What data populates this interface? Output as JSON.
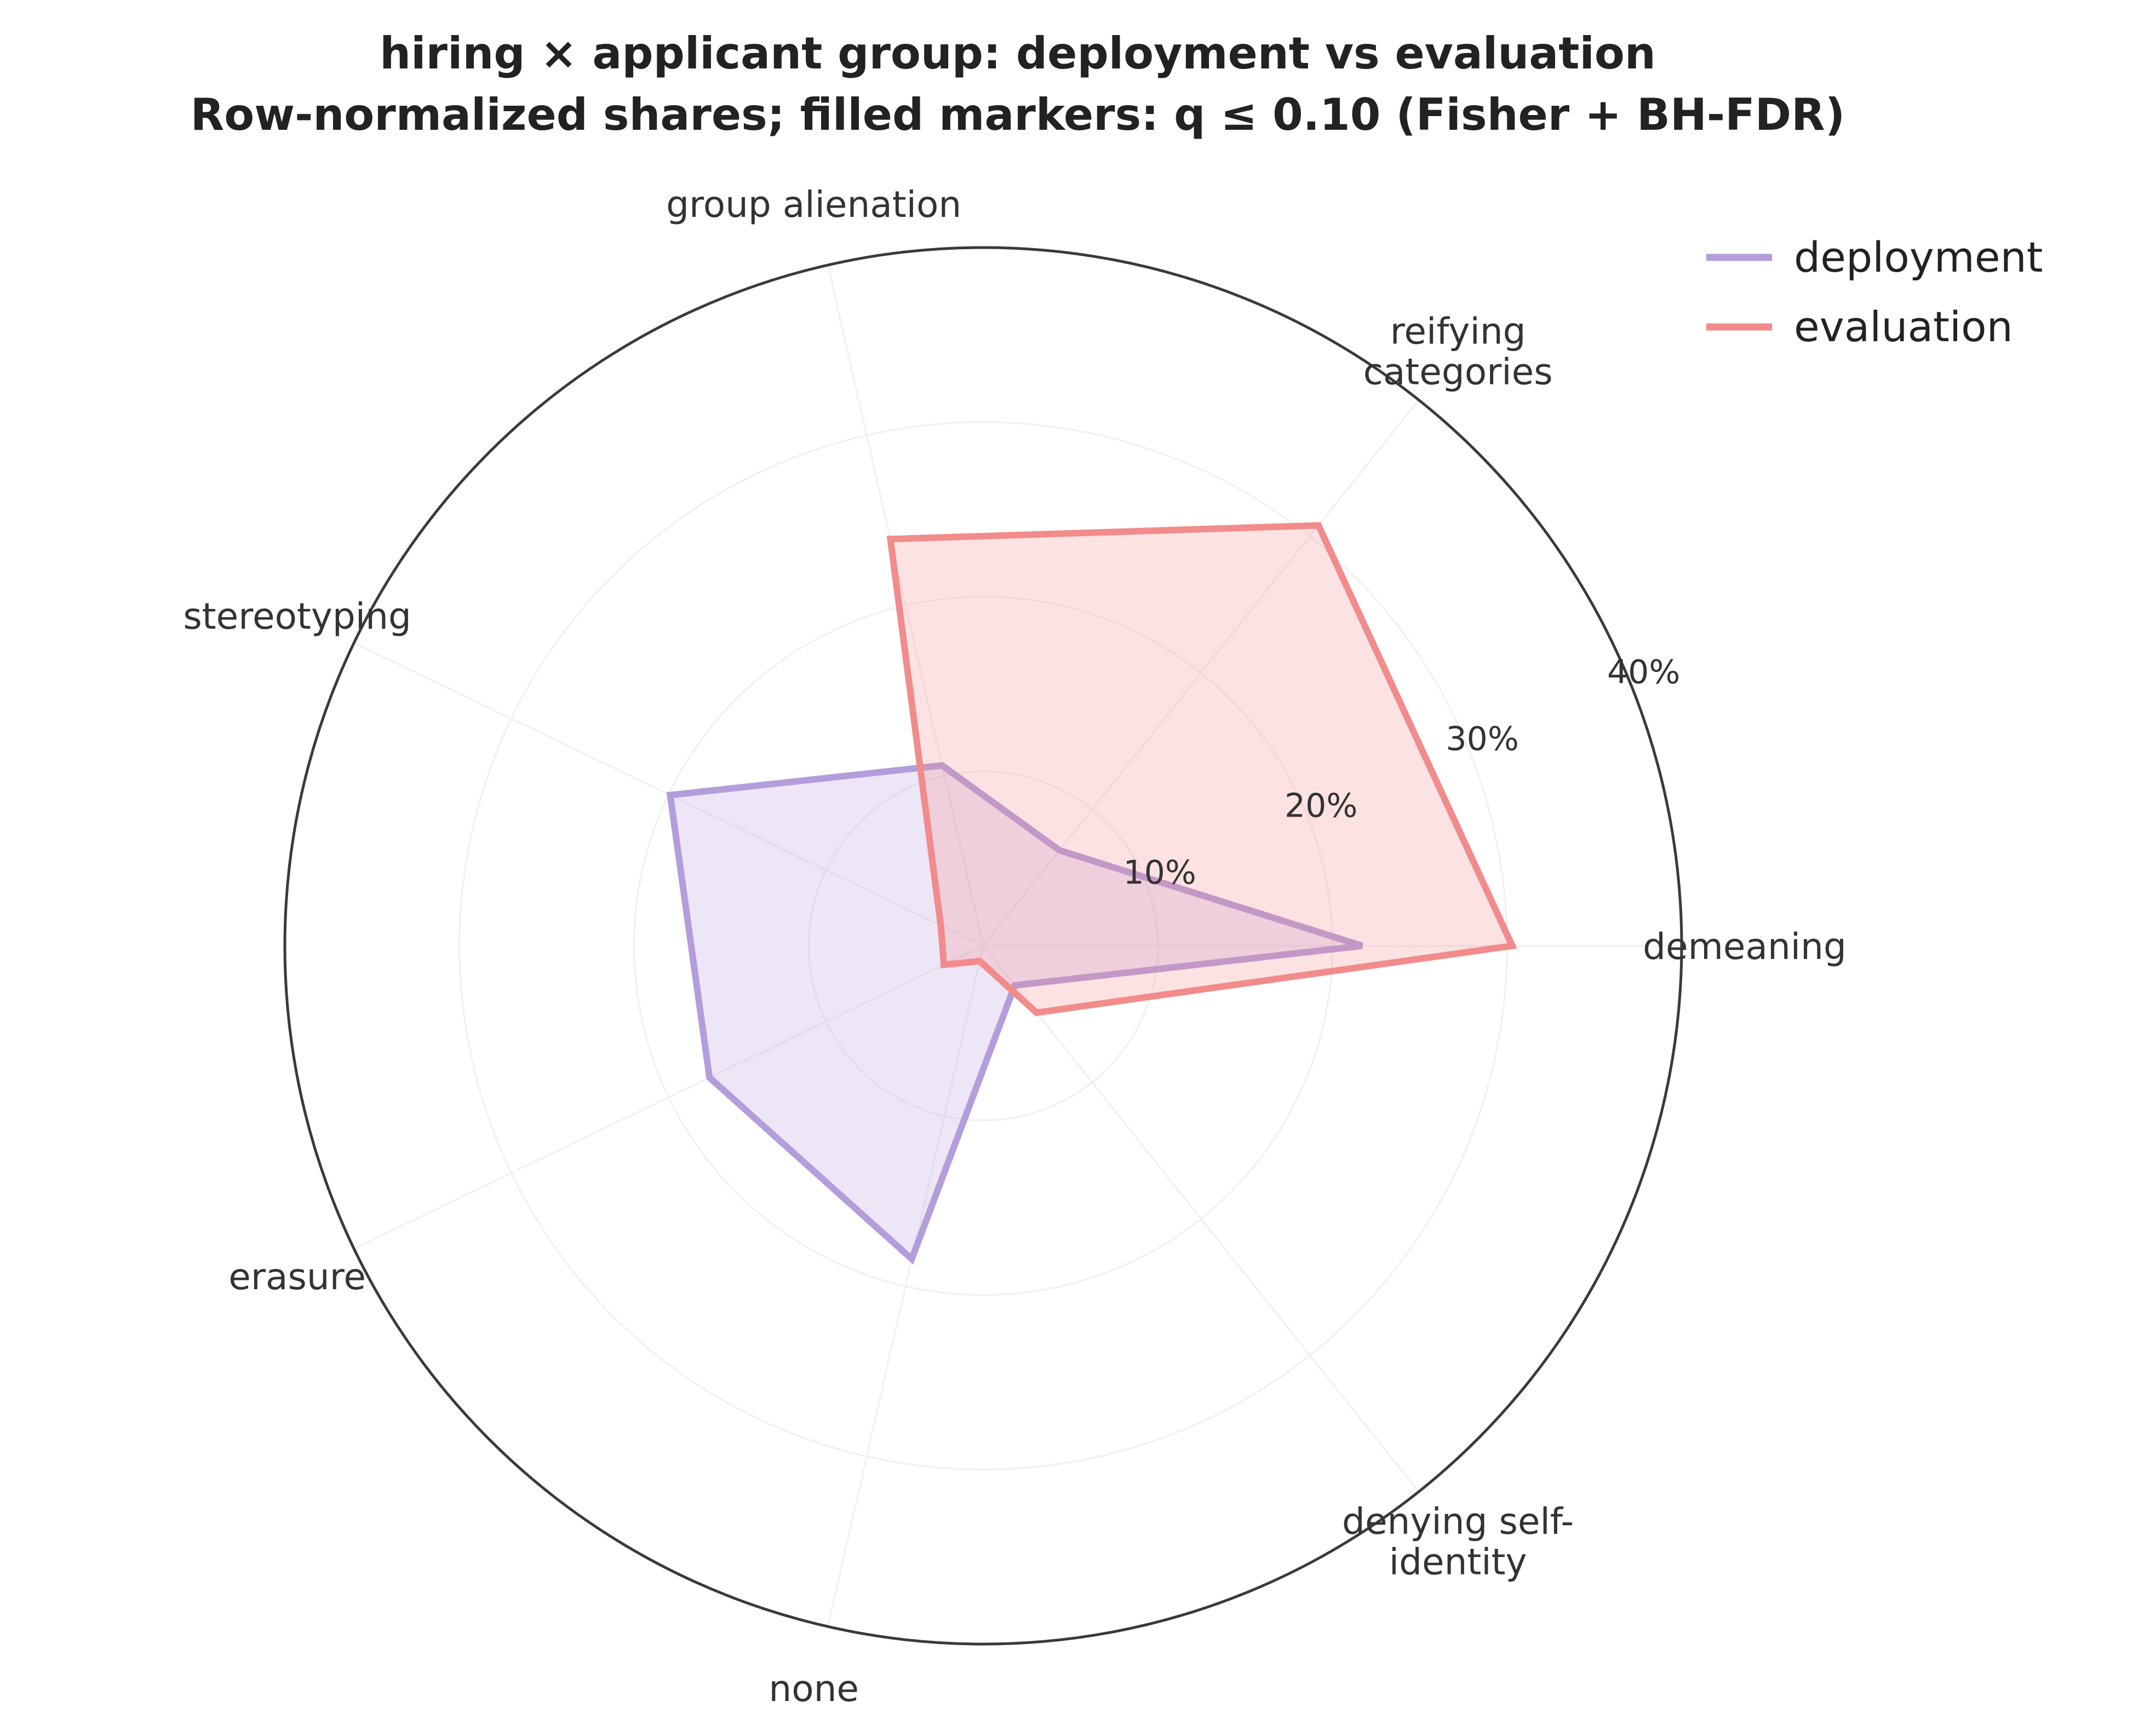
{
  "chart_data": {
    "type": "radar",
    "title": "hiring × applicant group: deployment vs evaluation",
    "subtitle": "Row-normalized shares; filled markers: q ≤ 0.10 (Fisher + BH-FDR)",
    "categories": [
      "demeaning",
      "reifying\ncategories",
      "group alienation",
      "stereotyping",
      "erasure",
      "none",
      "denying self-\nidentity"
    ],
    "radial_ticks": [
      "10%",
      "20%",
      "30%",
      "40%"
    ],
    "radial_tick_values": [
      10,
      20,
      30,
      40
    ],
    "rlim": [
      0,
      40
    ],
    "grid": true,
    "legend_position": "top-right",
    "series": [
      {
        "name": "deployment",
        "color": "#b39ddb",
        "values": [
          21.7,
          7.0,
          10.6,
          19.9,
          17.4,
          18.4,
          2.9
        ]
      },
      {
        "name": "evaluation",
        "color": "#f28b8b",
        "values": [
          30.3,
          30.8,
          23.9,
          2.7,
          2.5,
          0.9,
          4.9
        ]
      }
    ]
  }
}
